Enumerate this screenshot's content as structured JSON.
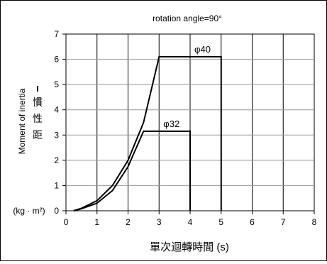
{
  "chart_data": {
    "type": "line",
    "title": "rotation angle=90°",
    "xlabel": "單次迴轉時間 (s)",
    "ylabel_en": "Moment of inertia",
    "ylabel_zh": [
      "慣",
      "性",
      "距"
    ],
    "yunit": "(kg · m²)",
    "xlim": [
      0,
      8
    ],
    "ylim": [
      0,
      7
    ],
    "xticks": [
      "0",
      "1",
      "2",
      "3",
      "4",
      "5",
      "6",
      "7",
      "8"
    ],
    "yticks": [
      "0",
      "1",
      "2",
      "3",
      "4",
      "5",
      "6",
      "7"
    ],
    "grid": {
      "vertical": true,
      "horizontal": true
    },
    "series": [
      {
        "name": "φ40",
        "points": [
          [
            0.25,
            0
          ],
          [
            0.5,
            0.1
          ],
          [
            1,
            0.4
          ],
          [
            1.5,
            1.0
          ],
          [
            2,
            2.0
          ],
          [
            2.5,
            3.5
          ],
          [
            3,
            6.1
          ],
          [
            5,
            6.1
          ],
          [
            5,
            0
          ]
        ]
      },
      {
        "name": "φ32",
        "points": [
          [
            0.25,
            0
          ],
          [
            0.5,
            0.08
          ],
          [
            1,
            0.3
          ],
          [
            1.5,
            0.8
          ],
          [
            2,
            1.75
          ],
          [
            2.5,
            3.15
          ],
          [
            4,
            3.15
          ],
          [
            4,
            0
          ]
        ]
      }
    ],
    "annotations": [
      {
        "text": "φ40",
        "series": "φ40"
      },
      {
        "text": "φ32",
        "series": "φ32"
      }
    ]
  }
}
